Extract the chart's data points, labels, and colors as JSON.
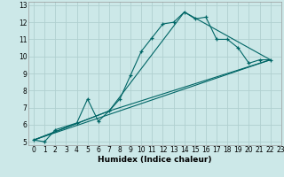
{
  "xlabel": "Humidex (Indice chaleur)",
  "ylabel": "",
  "xlim": [
    -0.5,
    23
  ],
  "ylim": [
    4.8,
    13.2
  ],
  "xticks": [
    0,
    1,
    2,
    3,
    4,
    5,
    6,
    7,
    8,
    9,
    10,
    11,
    12,
    13,
    14,
    15,
    16,
    17,
    18,
    19,
    20,
    21,
    22,
    23
  ],
  "yticks": [
    5,
    6,
    7,
    8,
    9,
    10,
    11,
    12,
    13
  ],
  "background_color": "#cce8e8",
  "grid_color": "#b0d0d0",
  "line_color": "#006666",
  "lines": [
    {
      "x": [
        0,
        1,
        2,
        4,
        5,
        6,
        7,
        8,
        9,
        10,
        11,
        12,
        13,
        14,
        15,
        16,
        17,
        18,
        19,
        20,
        21,
        22
      ],
      "y": [
        5.1,
        5.0,
        5.7,
        6.1,
        7.5,
        6.2,
        6.8,
        7.5,
        8.9,
        10.3,
        11.1,
        11.9,
        12.0,
        12.6,
        12.2,
        12.3,
        11.0,
        11.0,
        10.5,
        9.6,
        9.8,
        9.8
      ],
      "marker": true
    },
    {
      "x": [
        0,
        22
      ],
      "y": [
        5.1,
        9.8
      ],
      "marker": false
    },
    {
      "x": [
        0,
        7,
        22
      ],
      "y": [
        5.1,
        6.8,
        9.8
      ],
      "marker": false
    },
    {
      "x": [
        0,
        7,
        14,
        22
      ],
      "y": [
        5.1,
        6.8,
        12.6,
        9.8
      ],
      "marker": false
    }
  ],
  "tick_fontsize": 5.5,
  "label_fontsize": 6.5
}
